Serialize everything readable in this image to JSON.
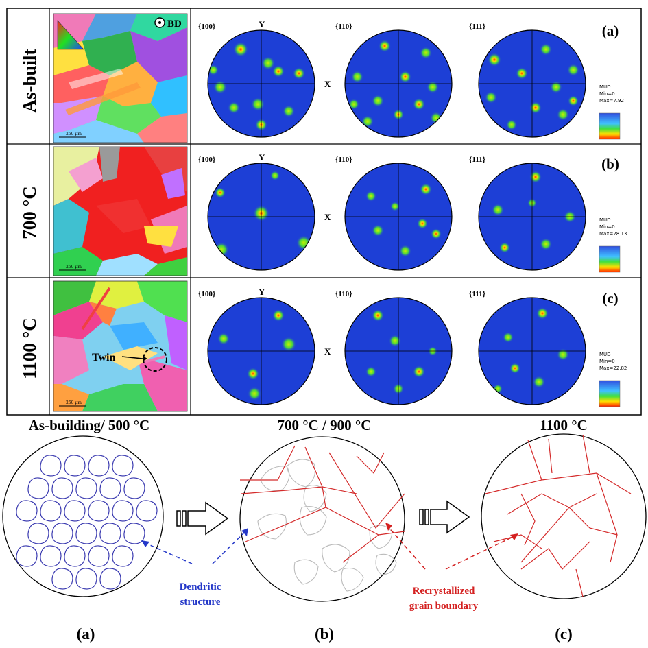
{
  "top_panel": {
    "rows": [
      {
        "label": "As-built",
        "tag": "(a)",
        "pf_labels": [
          "{100}",
          "{110}",
          "{111}"
        ],
        "legend": {
          "title": "MUD",
          "min": "Min=0",
          "max": "Max=7.92"
        },
        "scale": "250 μm",
        "bd_label": "BD"
      },
      {
        "label": "700 °C",
        "tag": "(b)",
        "pf_labels": [
          "{100}",
          "{110}",
          "{111}"
        ],
        "legend": {
          "title": "MUD",
          "min": "Min=0",
          "max": "Max=28.13"
        },
        "scale": "250 μm"
      },
      {
        "label": "1100 °C",
        "tag": "(c)",
        "pf_labels": [
          "{100}",
          "{110}",
          "{111}"
        ],
        "legend": {
          "title": "MUD",
          "min": "Min=0",
          "max": "Max=22.82"
        },
        "scale": "250 μm",
        "twin_label": "Twin"
      }
    ],
    "axis_y": "Y",
    "axis_x": "X"
  },
  "bottom_panel": {
    "stages": [
      {
        "title": "As-building/ 500 °C",
        "tag": "(a)"
      },
      {
        "title": "700 °C / 900 °C",
        "tag": "(b)"
      },
      {
        "title": "1100 °C",
        "tag": "(c)"
      }
    ],
    "annotations": {
      "dendritic": [
        "Dendritic",
        "structure"
      ],
      "recrystallized": [
        "Recrystallized",
        "grain boundary"
      ]
    }
  },
  "colors": {
    "pf_background": "#1d3fd6",
    "dendrite_line": "#3a3ab0",
    "boundary_line": "#d42a2a",
    "dendritic_text": "#2438c8",
    "recryst_text": "#d42020"
  }
}
